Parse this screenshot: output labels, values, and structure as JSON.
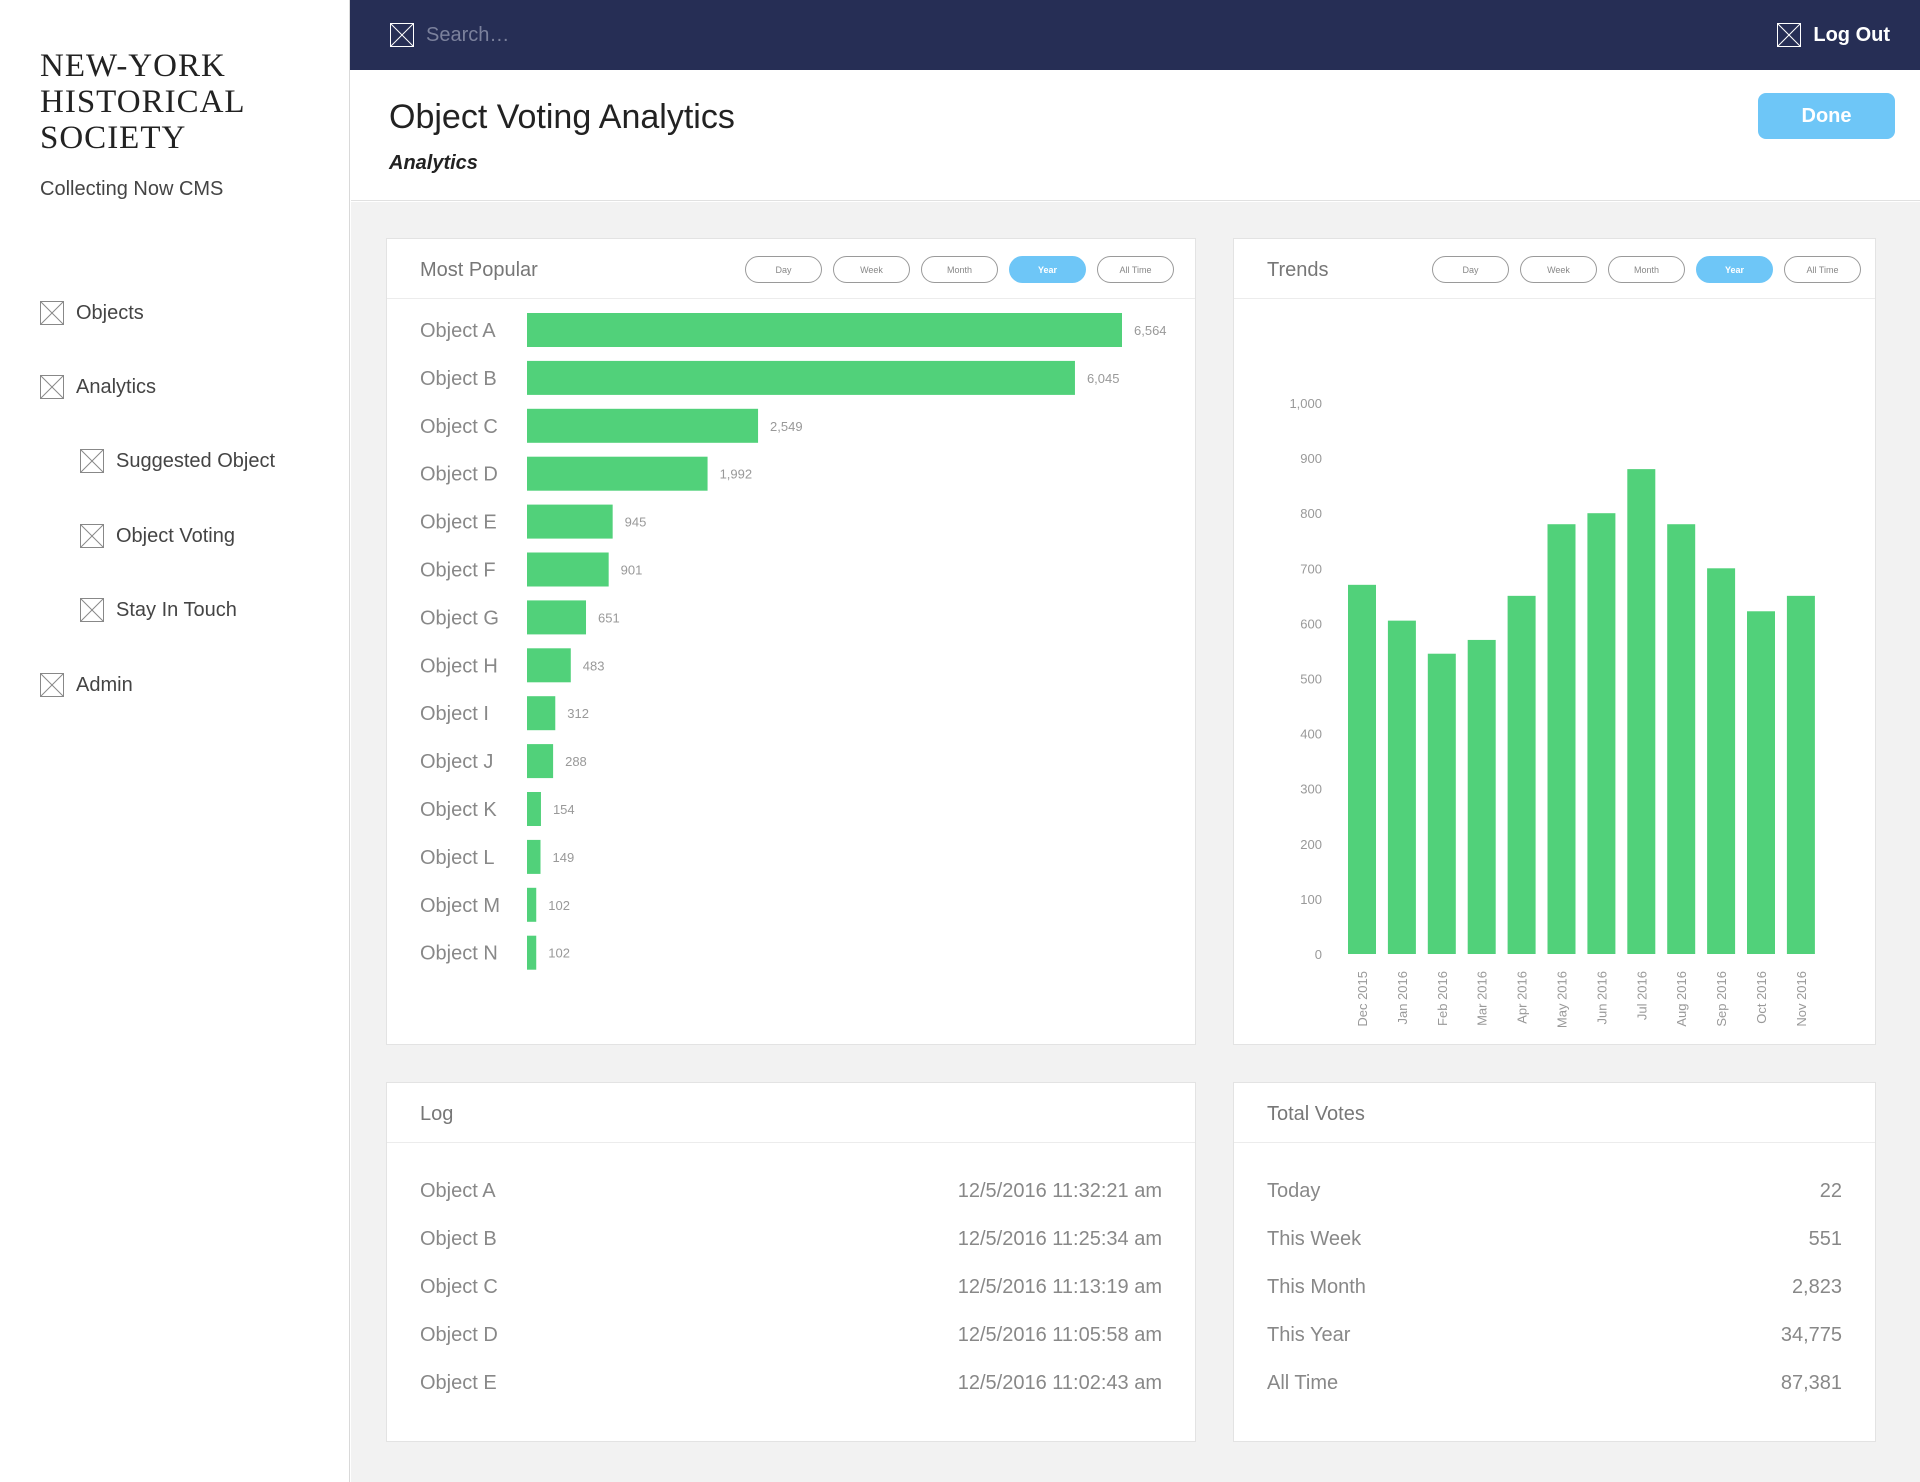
{
  "sidebar": {
    "logo_lines": [
      "NEW-YORK",
      "HISTORICAL",
      "SOCIETY"
    ],
    "subtitle": "Collecting Now CMS",
    "items": [
      {
        "label": "Objects",
        "icon": "image-placeholder-icon"
      },
      {
        "label": "Analytics",
        "icon": "image-placeholder-icon"
      },
      {
        "label": "Suggested Object",
        "icon": "image-placeholder-icon"
      },
      {
        "label": "Object Voting",
        "icon": "image-placeholder-icon"
      },
      {
        "label": "Stay In Touch",
        "icon": "image-placeholder-icon"
      },
      {
        "label": "Admin",
        "icon": "image-placeholder-icon"
      }
    ]
  },
  "topbar": {
    "search_placeholder": "Search…",
    "logout_label": "Log Out"
  },
  "header": {
    "title": "Object Voting Analytics",
    "subtitle": "Analytics",
    "done_label": "Done"
  },
  "colors": {
    "navy": "#262e55",
    "accent_blue": "#6ec6f7",
    "bar_green": "#51d17a"
  },
  "popular": {
    "title": "Most Popular",
    "ranges": [
      "Day",
      "Week",
      "Month",
      "Year",
      "All Time"
    ],
    "active_range": "Year"
  },
  "trends": {
    "title": "Trends",
    "ranges": [
      "Day",
      "Week",
      "Month",
      "Year",
      "All Time"
    ],
    "active_range": "Year"
  },
  "chart_data": [
    {
      "type": "bar",
      "orientation": "horizontal",
      "title": "Most Popular",
      "categories": [
        "Object A",
        "Object B",
        "Object C",
        "Object D",
        "Object E",
        "Object F",
        "Object G",
        "Object H",
        "Object I",
        "Object J",
        "Object K",
        "Object L",
        "Object M",
        "Object N"
      ],
      "values": [
        6564,
        6045,
        2549,
        1992,
        945,
        901,
        651,
        483,
        312,
        288,
        154,
        149,
        102,
        102
      ],
      "value_labels": [
        "6,564",
        "6,045",
        "2,549",
        "1,992",
        "945",
        "901",
        "651",
        "483",
        "312",
        "288",
        "154",
        "149",
        "102",
        "102"
      ],
      "xlabel": "",
      "ylabel": ""
    },
    {
      "type": "bar",
      "orientation": "vertical",
      "title": "Trends",
      "categories": [
        "Dec 2015",
        "Jan 2016",
        "Feb 2016",
        "Mar 2016",
        "Apr 2016",
        "May 2016",
        "Jun 2016",
        "Jul 2016",
        "Aug 2016",
        "Sep 2016",
        "Oct 2016",
        "Nov 2016"
      ],
      "values": [
        670,
        605,
        545,
        570,
        650,
        780,
        800,
        880,
        780,
        700,
        622,
        650
      ],
      "ylim": [
        0,
        1000
      ],
      "yticks": [
        0,
        100,
        200,
        300,
        400,
        500,
        600,
        700,
        800,
        900,
        1000
      ],
      "ytick_labels": [
        "0",
        "100",
        "200",
        "300",
        "400",
        "500",
        "600",
        "700",
        "800",
        "900",
        "1,000"
      ],
      "xlabel": "",
      "ylabel": ""
    }
  ],
  "log": {
    "title": "Log",
    "rows": [
      {
        "object": "Object A",
        "time": "12/5/2016 11:32:21 am"
      },
      {
        "object": "Object B",
        "time": "12/5/2016 11:25:34 am"
      },
      {
        "object": "Object C",
        "time": "12/5/2016 11:13:19 am"
      },
      {
        "object": "Object D",
        "time": "12/5/2016 11:05:58 am"
      },
      {
        "object": "Object E",
        "time": "12/5/2016 11:02:43 am"
      }
    ]
  },
  "totals": {
    "title": "Total Votes",
    "rows": [
      {
        "label": "Today",
        "value": "22"
      },
      {
        "label": "This Week",
        "value": "551"
      },
      {
        "label": "This Month",
        "value": "2,823"
      },
      {
        "label": "This Year",
        "value": "34,775"
      },
      {
        "label": "All Time",
        "value": "87,381"
      }
    ]
  }
}
